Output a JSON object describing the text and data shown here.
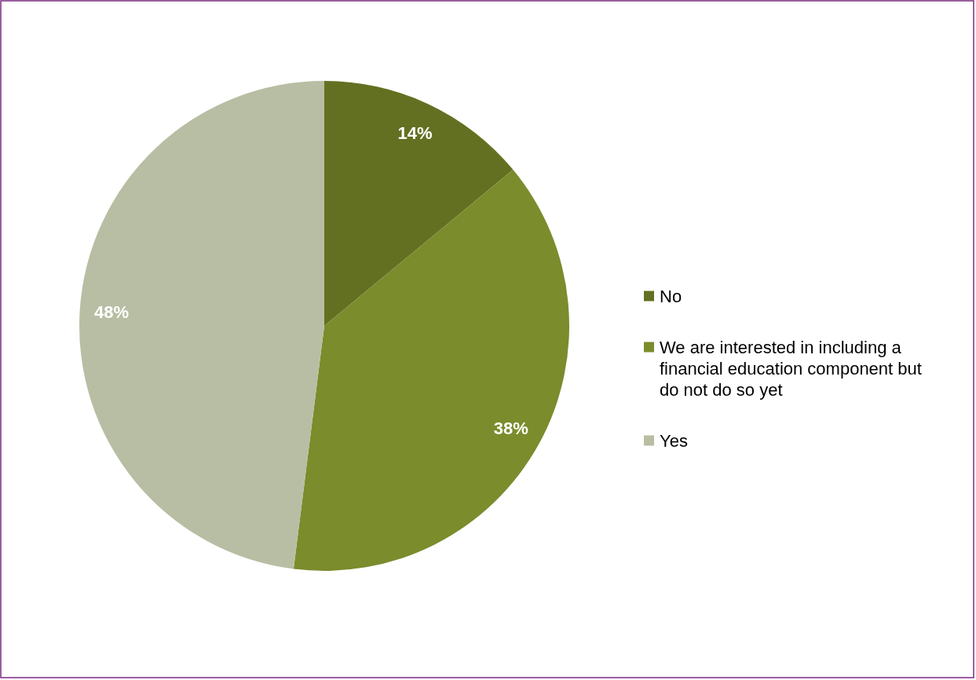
{
  "chart_data": {
    "type": "pie",
    "categories": [
      "No",
      "We are interested in including a financial education component but do not do so yet",
      "Yes"
    ],
    "values": [
      14,
      38,
      48
    ],
    "colors": [
      "#647021",
      "#7a8c2c",
      "#b8bea3"
    ],
    "value_labels": [
      "14%",
      "38%",
      "48%"
    ],
    "legend": "right"
  }
}
